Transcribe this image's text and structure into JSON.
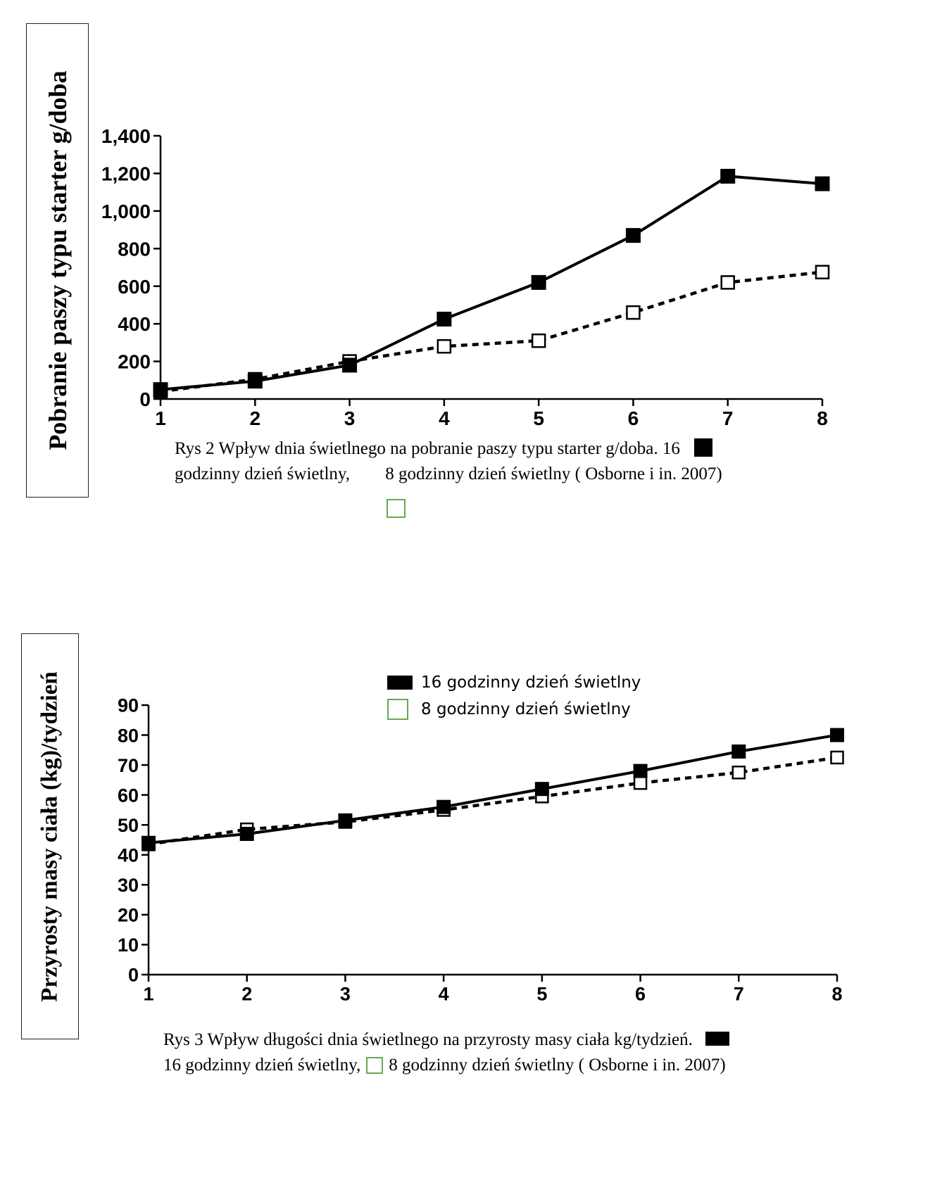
{
  "chart_data": [
    {
      "type": "line",
      "ylabel": "Pobranie  paszy typu starter g/doba",
      "xlabel": "",
      "x": [
        1,
        2,
        3,
        4,
        5,
        6,
        7,
        8
      ],
      "x_ticks": [
        "1",
        "2",
        "3",
        "4",
        "5",
        "6",
        "7",
        "8"
      ],
      "y_ticks": [
        "0",
        "200",
        "400",
        "600",
        "800",
        "1,000",
        "1,200",
        "1,400"
      ],
      "ylim": [
        0,
        1400
      ],
      "grid": false,
      "series": [
        {
          "name": "16 godzinny dzień świetlny",
          "marker": "filled-square",
          "line": "solid",
          "values": [
            50,
            95,
            180,
            425,
            620,
            870,
            1185,
            1145
          ]
        },
        {
          "name": "8 godzinny dzień świetlny",
          "marker": "open-square",
          "line": "dotted",
          "values": [
            40,
            105,
            200,
            280,
            310,
            460,
            620,
            675
          ]
        }
      ],
      "caption_line1": "Rys 2 Wpływ dnia świetlnego na pobranie paszy typu starter g/doba. 16",
      "caption_line2a": "godzinny dzień świetlny,",
      "caption_line2b": "8 godzinny dzień świetlny ( Osborne i in. 2007)"
    },
    {
      "type": "line",
      "ylabel": "Przyrosty masy ciała (kg)/tydzień",
      "xlabel": "",
      "x": [
        1,
        2,
        3,
        4,
        5,
        6,
        7,
        8
      ],
      "x_ticks": [
        "1",
        "2",
        "3",
        "4",
        "5",
        "6",
        "7",
        "8"
      ],
      "y_ticks": [
        "0",
        "10",
        "20",
        "30",
        "40",
        "50",
        "60",
        "70",
        "80",
        "90"
      ],
      "ylim": [
        0,
        90
      ],
      "grid": false,
      "legend": [
        "16 godzinny dzień świetlny",
        " 8 godzinny dzień świetlny"
      ],
      "legend_position": "top-center",
      "series": [
        {
          "name": "16 godzinny dzień świetlny",
          "marker": "filled-square",
          "line": "solid",
          "values": [
            44,
            47,
            51.5,
            56,
            62,
            68,
            74.5,
            80
          ]
        },
        {
          "name": "8 godzinny dzień świetlny",
          "marker": "open-square",
          "line": "dotted",
          "values": [
            43.5,
            48.5,
            51,
            55,
            59.5,
            64,
            67.5,
            72.5
          ]
        }
      ],
      "caption_line1": "Rys 3 Wpływ długości dnia świetlnego na przyrosty masy ciała kg/tydzień.",
      "caption_line2a": "16 godzinny dzień świetlny,",
      "caption_line2b": "8 godzinny dzień świetlny ( Osborne i in. 2007)"
    }
  ],
  "colors": {
    "series_16h": "#000000",
    "series_8h_legend": "#6aa84f",
    "axis": "#000000"
  }
}
